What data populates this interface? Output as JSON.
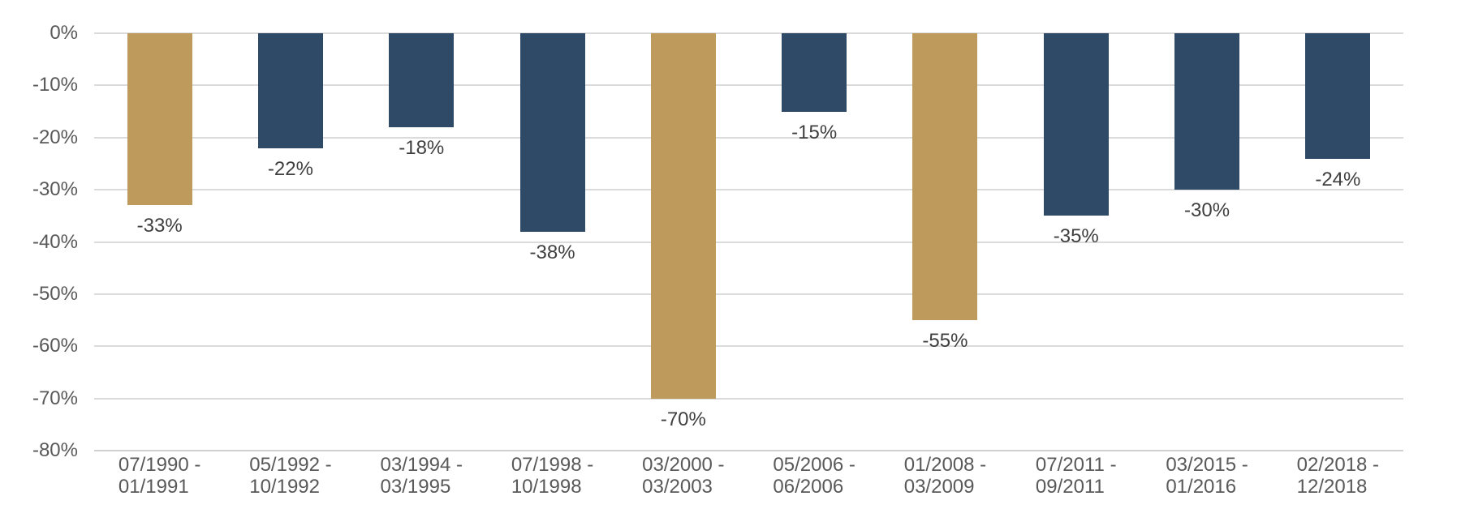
{
  "chart_data": {
    "type": "bar",
    "title": "",
    "xlabel": "",
    "ylabel": "",
    "categories": [
      "07/1990 - 01/1991",
      "05/1992 - 10/1992",
      "03/1994 - 03/1995",
      "07/1998 - 10/1998",
      "03/2000 - 03/2003",
      "05/2006 - 06/2006",
      "01/2008 - 03/2009",
      "07/2011 - 09/2011",
      "03/2015 - 01/2016",
      "02/2018 - 12/2018"
    ],
    "category_label_lines": [
      [
        "07/1990 -",
        "01/1991"
      ],
      [
        "05/1992 -",
        "10/1992"
      ],
      [
        "03/1994 -",
        "03/1995"
      ],
      [
        "07/1998 -",
        "10/1998"
      ],
      [
        "03/2000 -",
        "03/2003"
      ],
      [
        "05/2006 -",
        "06/2006"
      ],
      [
        "01/2008 -",
        "03/2009"
      ],
      [
        "07/2011 -",
        "09/2011"
      ],
      [
        "03/2015 -",
        "01/2016"
      ],
      [
        "02/2018 -",
        "12/2018"
      ]
    ],
    "values": [
      -33,
      -22,
      -18,
      -38,
      -70,
      -15,
      -55,
      -35,
      -30,
      -24
    ],
    "data_labels": [
      "-33%",
      "-22%",
      "-18%",
      "-38%",
      "-70%",
      "-15%",
      "-55%",
      "-35%",
      "-30%",
      "-24%"
    ],
    "bar_colors": [
      "gold",
      "navy",
      "navy",
      "navy",
      "gold",
      "navy",
      "gold",
      "navy",
      "navy",
      "navy"
    ],
    "palette": {
      "gold": "#BE9A5C",
      "navy": "#2E4A66"
    },
    "yticks": {
      "labels": [
        "0%",
        "-10%",
        "-20%",
        "-30%",
        "-40%",
        "-50%",
        "-60%",
        "-70%",
        "-80%"
      ],
      "values": [
        0,
        -10,
        -20,
        -30,
        -40,
        -50,
        -60,
        -70,
        -80
      ]
    },
    "ylim": [
      0,
      -80
    ],
    "grid": true,
    "legend": false,
    "styles": {
      "background": "#FFFFFF",
      "grid_color": "#DBDBDB",
      "axis_line_color": "#D0D0D0",
      "tick_label_color": "#595959",
      "data_label_color": "#3F3F3F"
    }
  }
}
